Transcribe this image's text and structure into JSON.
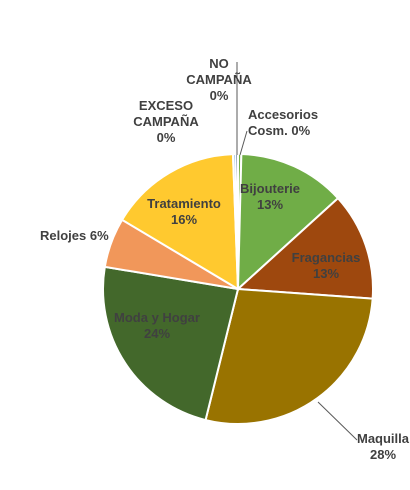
{
  "chart_data": {
    "type": "pie",
    "title": "",
    "slices": [
      {
        "label": "Accesorios Cosm.",
        "value": 0.4,
        "display": "0%",
        "color": "#70AD47"
      },
      {
        "label": "Bijouterie",
        "value": 13,
        "display": "13%",
        "color": "#70AD47"
      },
      {
        "label": "Fragancias",
        "value": 13,
        "display": "13%",
        "color": "#9E480E"
      },
      {
        "label": "Maquilla",
        "value": 28,
        "display": "28%",
        "color": "#997300"
      },
      {
        "label": "Moda y Hogar",
        "value": 24,
        "display": "24%",
        "color": "#43682B"
      },
      {
        "label": "Relojes",
        "value": 6,
        "display": "6%",
        "color": "#F1975A"
      },
      {
        "label": "Tratamiento",
        "value": 16,
        "display": "16%",
        "color": "#FFC92F"
      },
      {
        "label": "EXCESO CAMPAÑA",
        "value": 0.3,
        "display": "0%",
        "color": "#5B9BD5"
      },
      {
        "label": "NO CAMPAÑA",
        "value": 0.3,
        "display": "0%",
        "color": "#264478"
      }
    ]
  }
}
